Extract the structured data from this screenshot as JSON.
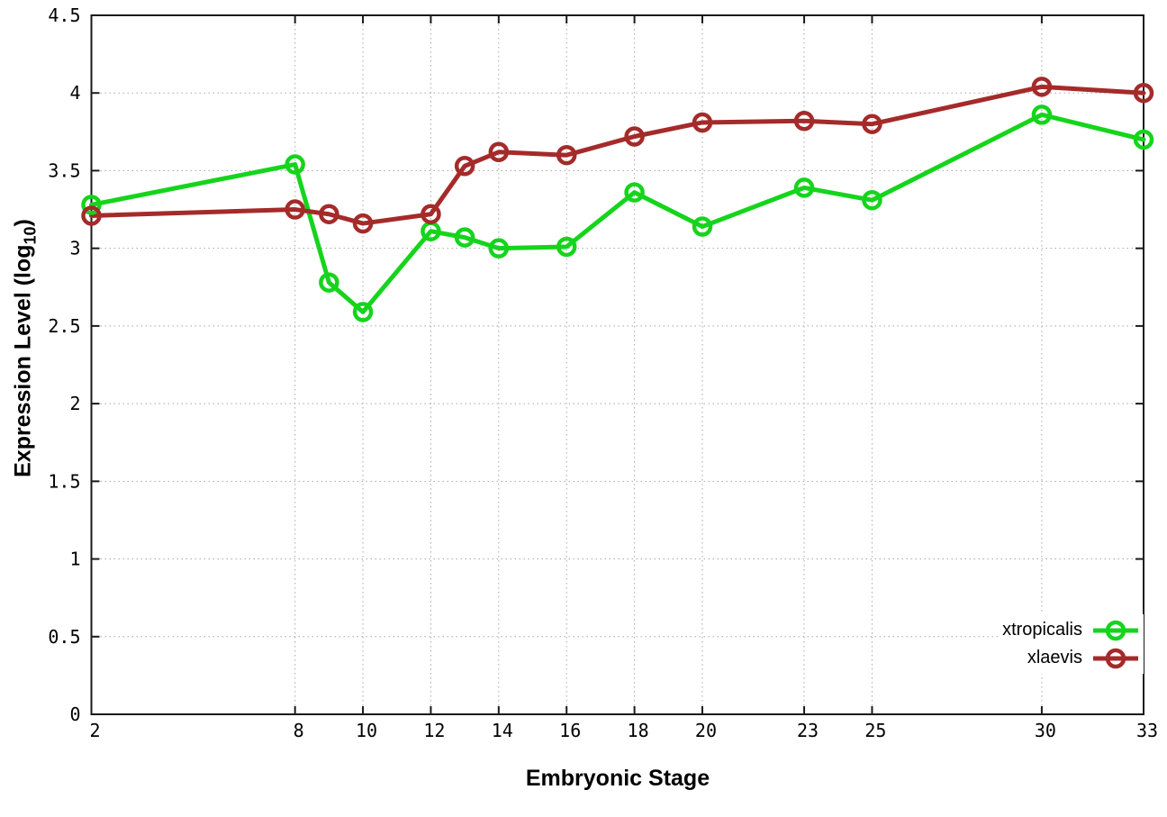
{
  "chart_data": {
    "type": "line",
    "title": "",
    "xlabel": "Embryonic Stage",
    "ylabel": "Expression Level (log10)",
    "ylabel_parts": {
      "prefix": "Expression Level (log",
      "sub": "10",
      "suffix": ")"
    },
    "x": [
      2,
      8,
      9,
      10,
      12,
      13,
      14,
      16,
      18,
      20,
      23,
      25,
      30,
      33
    ],
    "series": [
      {
        "name": "xtropicalis",
        "color": "#15d41c",
        "values": [
          3.28,
          3.54,
          2.78,
          2.59,
          3.11,
          3.07,
          3.0,
          3.01,
          3.36,
          3.14,
          3.39,
          3.31,
          3.86,
          3.7
        ]
      },
      {
        "name": "xlaevis",
        "color": "#a52a2a",
        "values": [
          3.21,
          3.25,
          3.22,
          3.16,
          3.22,
          3.53,
          3.62,
          3.6,
          3.72,
          3.81,
          3.82,
          3.8,
          4.04,
          4.0
        ]
      }
    ],
    "xlim": [
      2,
      33
    ],
    "ylim": [
      0,
      4.5
    ],
    "xticks": [
      2,
      8,
      10,
      12,
      14,
      16,
      18,
      20,
      23,
      25,
      30,
      33
    ],
    "xtick_labels": [
      "2",
      "8",
      "10",
      "12",
      "14",
      "16",
      "18",
      "20",
      "23",
      "25",
      "30",
      "33"
    ],
    "yticks": [
      0,
      0.5,
      1,
      1.5,
      2,
      2.5,
      3,
      3.5,
      4,
      4.5
    ],
    "ytick_labels": [
      "0",
      "0.5",
      "1",
      "1.5",
      "2",
      "2.5",
      "3",
      "3.5",
      "4",
      "4.5"
    ],
    "grid": true,
    "legend_position": "inside-bottom-right",
    "marker": "open-circle",
    "axis_color": "#1a1a1a",
    "grid_color": "#a8a8a8",
    "background": "#ffffff"
  }
}
